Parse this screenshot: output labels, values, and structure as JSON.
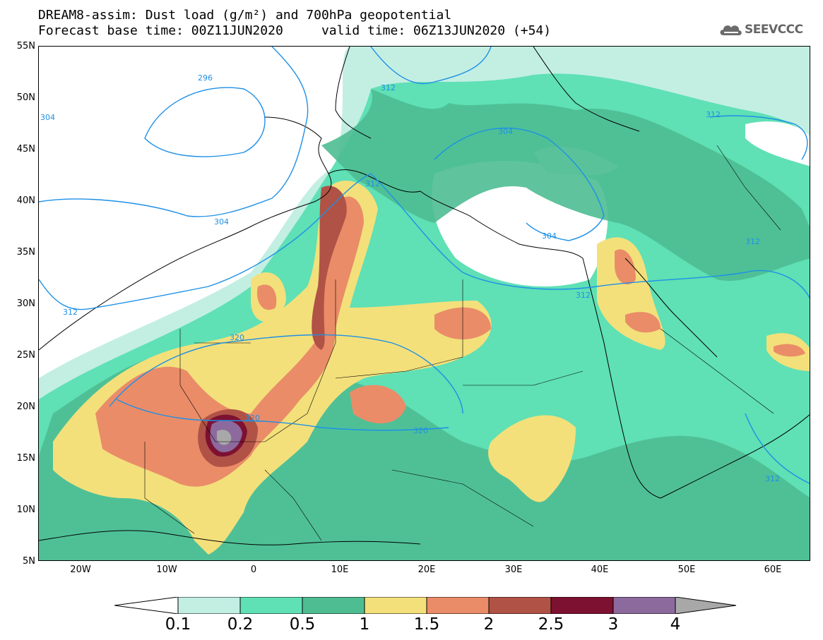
{
  "title": {
    "line1": "DREAM8-assim: Dust load (g/m²) and 700hPa geopotential",
    "line2": "Forecast base time: 00Z11JUN2020     valid time: 06Z13JUN2020 (+54)"
  },
  "logo": {
    "text": "SEEVCCC",
    "icon": "cloud-icon"
  },
  "map": {
    "lon_range": [
      -25,
      65
    ],
    "lat_range": [
      5,
      55
    ],
    "lat_labels": [
      "55N",
      "50N",
      "45N",
      "40N",
      "35N",
      "30N",
      "25N",
      "20N",
      "15N",
      "10N",
      "5N"
    ],
    "lon_labels": [
      "20W",
      "10W",
      "0",
      "10E",
      "20E",
      "30E",
      "40E",
      "50E",
      "60E"
    ],
    "contour_labels": [
      "296",
      "304",
      "304",
      "312",
      "312",
      "312",
      "304",
      "304",
      "312",
      "312",
      "312",
      "320",
      "320",
      "320",
      "312"
    ]
  },
  "legend": {
    "labels": [
      "0.1",
      "0.2",
      "0.5",
      "1",
      "1.5",
      "2",
      "2.5",
      "3",
      "4"
    ],
    "colors": [
      "#c3efe3",
      "#5fe0b5",
      "#4ebd92",
      "#f3e07b",
      "#ea8c68",
      "#b05245",
      "#7d1131",
      "#8c6a9d",
      "#a8a8a8"
    ]
  }
}
